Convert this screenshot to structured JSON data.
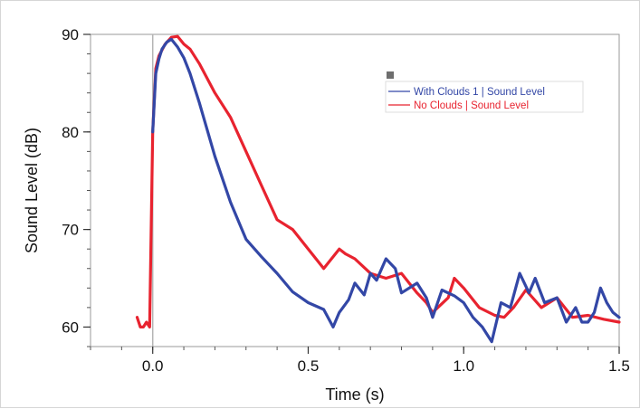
{
  "chart_data": {
    "type": "line",
    "title": "",
    "xlabel": "Time (s)",
    "ylabel": "Sound Level (dB)",
    "xlim": [
      -0.2,
      1.5
    ],
    "ylim": [
      58,
      90
    ],
    "x_ticks": [
      0.0,
      0.5,
      1.0,
      1.5
    ],
    "x_tick_labels": [
      "0.0",
      "0.5",
      "1.0",
      "1.5"
    ],
    "y_ticks": [
      60,
      70,
      80,
      90
    ],
    "y_tick_labels": [
      "60",
      "70",
      "80",
      "90"
    ],
    "grid": false,
    "legend_position": "top-right",
    "series": [
      {
        "name": "With Clouds 1 | Sound Level",
        "color": "#3347a6",
        "points": [
          [
            0.0,
            80
          ],
          [
            0.01,
            86
          ],
          [
            0.02,
            87.5
          ],
          [
            0.03,
            88.5
          ],
          [
            0.045,
            89.2
          ],
          [
            0.06,
            89.5
          ],
          [
            0.08,
            88.7
          ],
          [
            0.1,
            87.6
          ],
          [
            0.12,
            86
          ],
          [
            0.15,
            83
          ],
          [
            0.2,
            77.5
          ],
          [
            0.25,
            72.8
          ],
          [
            0.3,
            69
          ],
          [
            0.35,
            67.2
          ],
          [
            0.4,
            65.5
          ],
          [
            0.45,
            63.6
          ],
          [
            0.5,
            62.5
          ],
          [
            0.55,
            61.8
          ],
          [
            0.58,
            60
          ],
          [
            0.6,
            61.5
          ],
          [
            0.63,
            62.8
          ],
          [
            0.65,
            64.5
          ],
          [
            0.68,
            63.3
          ],
          [
            0.7,
            65.5
          ],
          [
            0.72,
            64.8
          ],
          [
            0.75,
            67
          ],
          [
            0.78,
            66
          ],
          [
            0.8,
            63.5
          ],
          [
            0.85,
            64.5
          ],
          [
            0.88,
            63
          ],
          [
            0.9,
            61
          ],
          [
            0.93,
            63.8
          ],
          [
            0.97,
            63.2
          ],
          [
            1.0,
            62.5
          ],
          [
            1.03,
            61
          ],
          [
            1.06,
            60
          ],
          [
            1.09,
            58.5
          ],
          [
            1.12,
            62.5
          ],
          [
            1.15,
            62
          ],
          [
            1.18,
            65.5
          ],
          [
            1.21,
            63.5
          ],
          [
            1.23,
            65
          ],
          [
            1.26,
            62.5
          ],
          [
            1.3,
            63
          ],
          [
            1.33,
            60.5
          ],
          [
            1.36,
            62
          ],
          [
            1.38,
            60.5
          ],
          [
            1.4,
            60.5
          ],
          [
            1.42,
            61.5
          ],
          [
            1.44,
            64
          ],
          [
            1.46,
            62.5
          ],
          [
            1.48,
            61.5
          ],
          [
            1.5,
            61
          ]
        ]
      },
      {
        "name": "No Clouds | Sound Level",
        "color": "#e8232f",
        "points": [
          [
            -0.05,
            61
          ],
          [
            -0.04,
            60
          ],
          [
            -0.03,
            60
          ],
          [
            -0.02,
            60.5
          ],
          [
            -0.01,
            60
          ],
          [
            0.0,
            80
          ],
          [
            0.01,
            86.5
          ],
          [
            0.02,
            87.8
          ],
          [
            0.04,
            89
          ],
          [
            0.06,
            89.7
          ],
          [
            0.08,
            89.8
          ],
          [
            0.1,
            89
          ],
          [
            0.12,
            88.5
          ],
          [
            0.15,
            87
          ],
          [
            0.2,
            84
          ],
          [
            0.25,
            81.5
          ],
          [
            0.3,
            78
          ],
          [
            0.35,
            74.5
          ],
          [
            0.4,
            71
          ],
          [
            0.45,
            70
          ],
          [
            0.5,
            68
          ],
          [
            0.55,
            66
          ],
          [
            0.6,
            68
          ],
          [
            0.62,
            67.5
          ],
          [
            0.65,
            67
          ],
          [
            0.7,
            65.5
          ],
          [
            0.75,
            65
          ],
          [
            0.8,
            65.5
          ],
          [
            0.85,
            63.5
          ],
          [
            0.88,
            62.5
          ],
          [
            0.9,
            61.5
          ],
          [
            0.95,
            63
          ],
          [
            0.97,
            65
          ],
          [
            1.0,
            64
          ],
          [
            1.05,
            62
          ],
          [
            1.1,
            61.2
          ],
          [
            1.13,
            61
          ],
          [
            1.16,
            62
          ],
          [
            1.2,
            63.8
          ],
          [
            1.25,
            62
          ],
          [
            1.3,
            63
          ],
          [
            1.35,
            61
          ],
          [
            1.4,
            61.2
          ],
          [
            1.45,
            60.8
          ],
          [
            1.5,
            60.5
          ]
        ]
      }
    ]
  }
}
